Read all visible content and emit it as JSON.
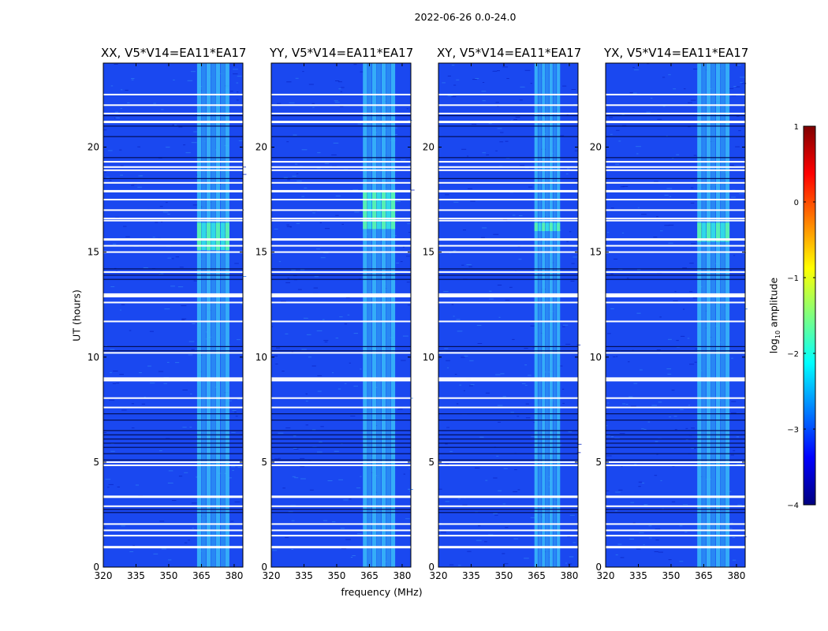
{
  "figure_title": "2022-06-26 0.0-24.0",
  "ylabel": "UT (hours)",
  "xlabel": "frequency (MHz)",
  "colorbar": {
    "label_main": "log",
    "label_sub": "10",
    "label_rest": " amplitude",
    "ticks": [
      1,
      0,
      -1,
      -2,
      -3,
      -4
    ],
    "range": [
      -4,
      1
    ],
    "colors": [
      "#00007f",
      "#0000ff",
      "#007fff",
      "#00ffff",
      "#7fff7f",
      "#ffff00",
      "#ff7f00",
      "#ff0000",
      "#7f0000"
    ]
  },
  "chart_data": {
    "type": "heatmap",
    "panels": [
      {
        "title": "XX, V5*V14=EA11*EA17",
        "rfi_band_mhz": [
          363,
          378
        ],
        "rfi_strong_hours": [
          15.1,
          16.4
        ]
      },
      {
        "title": "YY, V5*V14=EA11*EA17",
        "rfi_band_mhz": [
          362,
          377
        ],
        "rfi_strong_hours": [
          16.1,
          17.9
        ]
      },
      {
        "title": "XY, V5*V14=EA11*EA17",
        "rfi_band_mhz": [
          364,
          376
        ],
        "rfi_strong_hours": [
          16.0,
          16.4
        ]
      },
      {
        "title": "YX, V5*V14=EA11*EA17",
        "rfi_band_mhz": [
          362,
          377
        ],
        "rfi_strong_hours": [
          15.5,
          16.4
        ]
      }
    ],
    "x": {
      "range": [
        320,
        384
      ],
      "ticks": [
        320,
        335,
        350,
        365,
        380
      ]
    },
    "y": {
      "range": [
        0,
        24
      ],
      "ticks": [
        0,
        5,
        10,
        15,
        20
      ]
    },
    "white_gap_hours": [
      0.95,
      1.5,
      1.75,
      2.05,
      2.9,
      3.35,
      4.85,
      5.0,
      7.6,
      8.05,
      8.9,
      9.0,
      10.2,
      11.7,
      12.6,
      12.9,
      13.0,
      14.05,
      15.0,
      15.3,
      15.6,
      16.5,
      16.6,
      17.0,
      17.5,
      17.9,
      18.3,
      18.9,
      19.05,
      19.3,
      21.2,
      21.6,
      22.0,
      22.5
    ],
    "dark_line_hours": [
      2.6,
      2.75,
      5.1,
      5.4,
      5.7,
      5.9,
      6.1,
      6.3,
      6.5,
      7.0,
      7.3,
      10.3,
      10.5,
      13.7,
      13.9,
      14.2,
      18.5,
      19.5,
      20.5,
      21.0,
      21.5
    ]
  }
}
